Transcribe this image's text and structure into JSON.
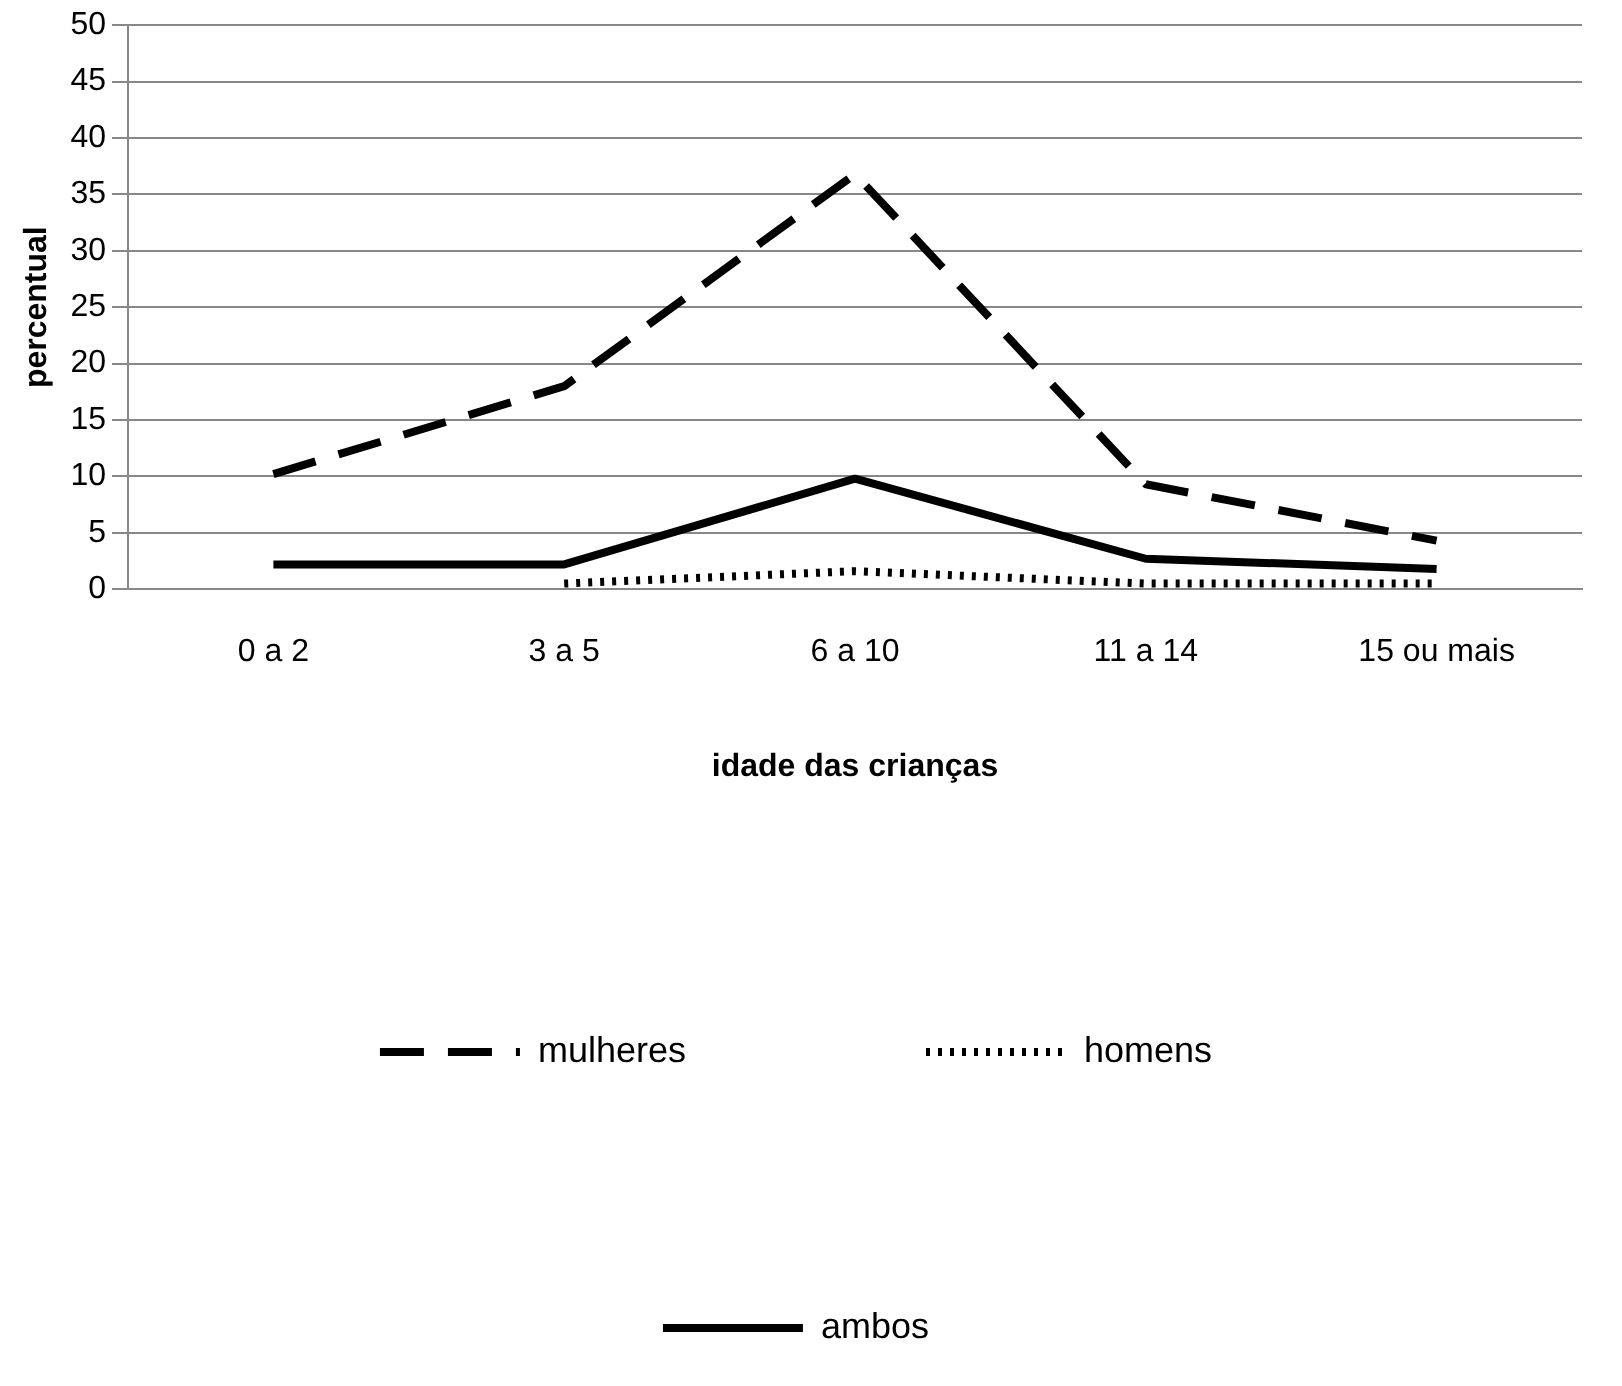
{
  "chart_data": {
    "type": "line",
    "categories": [
      "0 a 2",
      "3 a 5",
      "6 a 10",
      "11 a 14",
      "15 ou mais"
    ],
    "series": [
      {
        "name": "mulheres",
        "color": "#000000",
        "line_style": "dashed",
        "values": [
          10.2,
          18,
          36.8,
          9.3,
          4.3
        ]
      },
      {
        "name": "homens",
        "color": "#000000",
        "line_style": "dotted",
        "values": [
          null,
          0.5,
          1.6,
          0.5,
          0.5
        ]
      },
      {
        "name": "ambos",
        "color": "#000000",
        "line_style": "solid",
        "values": [
          2.2,
          2.2,
          9.8,
          2.7,
          1.8
        ]
      }
    ],
    "xlabel": "idade das crianças",
    "ylabel": "percentual",
    "ylim": [
      0,
      50
    ],
    "yticks": [
      0,
      5,
      10,
      15,
      20,
      25,
      30,
      35,
      40,
      45,
      50
    ],
    "grid": "y",
    "legend": "bottom",
    "marker": "none"
  }
}
